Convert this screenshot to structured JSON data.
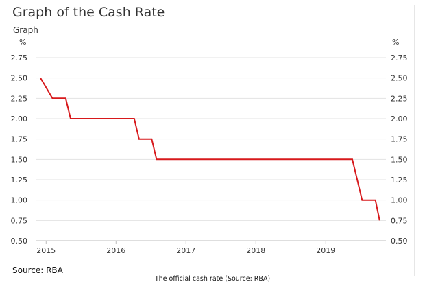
{
  "page_title": "Graph of the Cash Rate",
  "graph_label": "Graph",
  "source": "Source: RBA",
  "caption": "The official cash rate (Source: RBA)",
  "chart_data": {
    "type": "line",
    "ylabel_left": "%",
    "ylabel_right": "%",
    "ylim": [
      0.5,
      2.75
    ],
    "yticks": [
      0.5,
      0.75,
      1.0,
      1.25,
      1.5,
      1.75,
      2.0,
      2.25,
      2.5,
      2.75
    ],
    "ytick_labels": [
      "0.50",
      "0.75",
      "1.00",
      "1.25",
      "1.50",
      "1.75",
      "2.00",
      "2.25",
      "2.50",
      "2.75"
    ],
    "xlim": [
      2014.86,
      2019.86
    ],
    "xticks": [
      2015,
      2016,
      2017,
      2018,
      2019
    ],
    "xtick_labels": [
      "2015",
      "2016",
      "2017",
      "2018",
      "2019"
    ],
    "grid": true,
    "series": [
      {
        "name": "Cash rate",
        "color": "#d7191c",
        "x": [
          2014.92,
          2015.09,
          2015.28,
          2015.35,
          2016.26,
          2016.33,
          2016.51,
          2016.58,
          2019.38,
          2019.52,
          2019.71,
          2019.77
        ],
        "y": [
          2.5,
          2.25,
          2.25,
          2.0,
          2.0,
          1.75,
          1.75,
          1.5,
          1.5,
          1.0,
          1.0,
          0.75
        ]
      }
    ]
  }
}
